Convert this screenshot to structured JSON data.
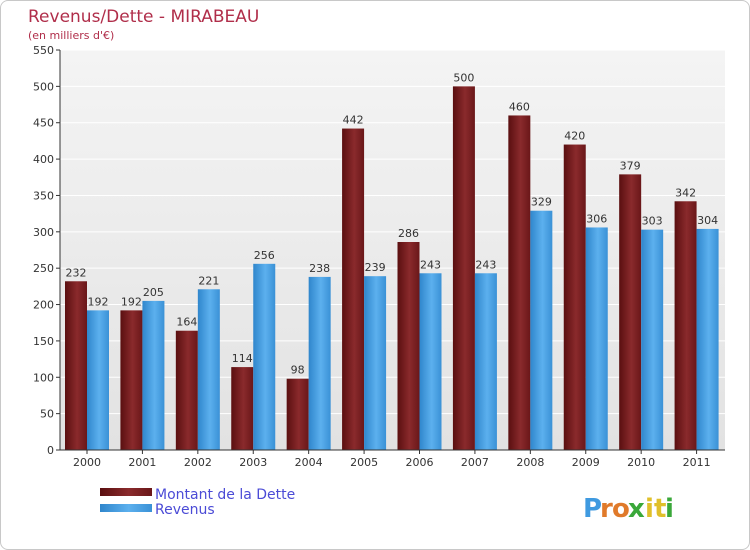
{
  "chart_data": {
    "type": "bar",
    "title": "Revenus/Dette - MIRABEAU",
    "subtitle": "(en milliers d'€)",
    "categories": [
      "2000",
      "2001",
      "2002",
      "2003",
      "2004",
      "2005",
      "2006",
      "2007",
      "2008",
      "2009",
      "2010",
      "2011"
    ],
    "series": [
      {
        "name": "Montant de la Dette",
        "color": "#6e1a1a",
        "values": [
          232,
          192,
          164,
          114,
          98,
          442,
          286,
          500,
          460,
          420,
          379,
          342
        ]
      },
      {
        "name": "Revenus",
        "color": "#3f9ae0",
        "values": [
          192,
          205,
          221,
          256,
          238,
          239,
          243,
          243,
          329,
          306,
          303,
          304
        ]
      }
    ],
    "ylim": [
      0,
      550
    ],
    "yticks": [
      0,
      50,
      100,
      150,
      200,
      250,
      300,
      350,
      400,
      450,
      500,
      550
    ],
    "grid": true,
    "legend": "bottom-left"
  },
  "logo": {
    "letters": [
      "P",
      "r",
      "o",
      "x",
      "i",
      "t",
      "i"
    ],
    "colors": [
      "#3f9ae0",
      "#e07a2a",
      "#e07a2a",
      "#3aa83a",
      "#e0c02a",
      "#e0c02a",
      "#3aa83a"
    ]
  }
}
